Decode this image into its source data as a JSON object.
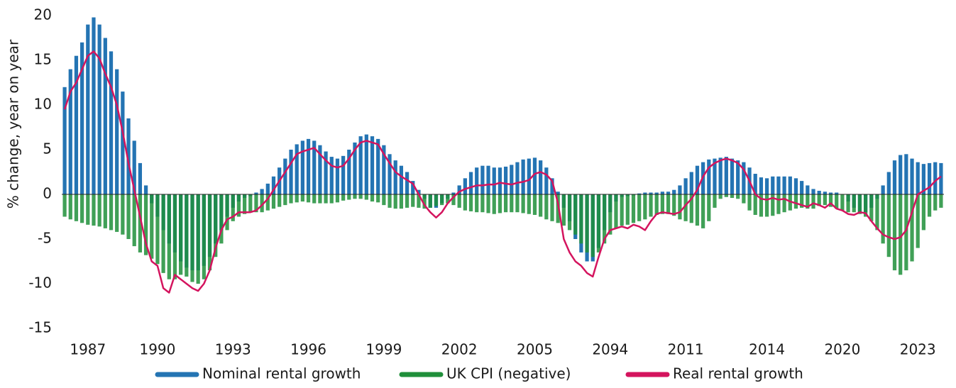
{
  "chart_data": {
    "type": "bar_line",
    "y_label": "% change, year on year",
    "categories": [
      null,
      null,
      null,
      null,
      "1987",
      null,
      null,
      null,
      null,
      null,
      null,
      null,
      null,
      null,
      null,
      null,
      "1990",
      null,
      null,
      null,
      null,
      null,
      null,
      null,
      null,
      null,
      null,
      null,
      null,
      "1993",
      null,
      null,
      null,
      null,
      null,
      null,
      null,
      null,
      null,
      null,
      null,
      null,
      "1996",
      null,
      null,
      null,
      null,
      null,
      null,
      null,
      null,
      null,
      null,
      null,
      null,
      "1999",
      null,
      null,
      null,
      null,
      null,
      null,
      null,
      null,
      null,
      null,
      null,
      null,
      "2002",
      null,
      null,
      null,
      null,
      null,
      null,
      null,
      null,
      null,
      null,
      null,
      null,
      "2005",
      null,
      null,
      null,
      null,
      null,
      null,
      null,
      null,
      null,
      null,
      null,
      null,
      "2094",
      null,
      null,
      null,
      null,
      null,
      null,
      null,
      null,
      null,
      null,
      null,
      null,
      "2011",
      null,
      null,
      null,
      null,
      null,
      null,
      null,
      null,
      null,
      null,
      null,
      null,
      null,
      "2014",
      null,
      null,
      null,
      null,
      null,
      null,
      null,
      null,
      null,
      null,
      null,
      null,
      "2020",
      null,
      null,
      null,
      null,
      null,
      null,
      null,
      null,
      null,
      null,
      null,
      null,
      "2023",
      null,
      null,
      null,
      null
    ],
    "series": [
      {
        "name": "Nominal rental growth",
        "color": "#2474b3",
        "kind": "bar",
        "values": [
          12,
          14,
          15.5,
          17,
          19,
          19.8,
          19,
          17.5,
          16,
          14,
          11.5,
          8.5,
          6,
          3.5,
          1,
          -1,
          -2.5,
          -4,
          -5.5,
          -6.5,
          -7.5,
          -8.2,
          -8.5,
          -8.5,
          -8,
          -7,
          -5.5,
          -4,
          -2.5,
          -1.5,
          -0.8,
          -0.4,
          -0.2,
          0.2,
          0.6,
          1.2,
          2,
          3,
          4,
          5,
          5.6,
          6,
          6.2,
          6,
          5.5,
          4.8,
          4.2,
          4,
          4.3,
          5,
          5.8,
          6.5,
          6.7,
          6.5,
          6.2,
          5.5,
          4.5,
          3.8,
          3.2,
          2.5,
          1.5,
          0.5,
          -0.5,
          -1.5,
          -1.5,
          -1,
          -0.5,
          0.2,
          1,
          1.8,
          2.5,
          3,
          3.2,
          3.2,
          3,
          3,
          3.1,
          3.3,
          3.6,
          3.9,
          4,
          4.1,
          3.8,
          3,
          1.8,
          0.3,
          -1.5,
          -3,
          -5,
          -6.5,
          -7.5,
          -7.5,
          -6,
          -4,
          -2,
          -0.8,
          -0.3,
          -0.2,
          -0.1,
          0.1,
          0.2,
          0.2,
          0.2,
          0.3,
          0.3,
          0.5,
          1,
          1.8,
          2.5,
          3.2,
          3.6,
          3.9,
          4,
          4.1,
          4.2,
          4,
          3.8,
          3.6,
          3,
          2.3,
          1.9,
          1.8,
          2,
          2,
          2,
          2,
          1.8,
          1.5,
          1,
          0.6,
          0.4,
          0.3,
          0.2,
          0.2,
          0,
          -0.8,
          -1.5,
          -2,
          -2,
          -1.5,
          -0.5,
          1,
          2.5,
          3.8,
          4.4,
          4.5,
          4,
          3.6,
          3.4,
          3.5,
          3.6,
          3.5
        ]
      },
      {
        "name": "UK CPI (negative)",
        "color": "#1f8f3a",
        "kind": "bar",
        "values": [
          -2.5,
          -2.8,
          -3,
          -3.2,
          -3.4,
          -3.5,
          -3.6,
          -3.8,
          -4,
          -4.2,
          -4.5,
          -5,
          -5.8,
          -6.5,
          -6.8,
          -7.2,
          -7.8,
          -8.8,
          -9.5,
          -9.5,
          -9,
          -9.2,
          -9.8,
          -10,
          -9.5,
          -8.5,
          -7,
          -5.5,
          -4,
          -3,
          -2.5,
          -2.2,
          -2,
          -2,
          -2,
          -1.8,
          -1.6,
          -1.4,
          -1.2,
          -1,
          -0.9,
          -0.8,
          -0.9,
          -1,
          -1,
          -1,
          -1,
          -0.9,
          -0.7,
          -0.6,
          -0.5,
          -0.5,
          -0.6,
          -0.8,
          -0.9,
          -1.2,
          -1.5,
          -1.6,
          -1.6,
          -1.5,
          -1.4,
          -1.5,
          -1.6,
          -1.5,
          -1.3,
          -1.2,
          -1,
          -1.2,
          -1.5,
          -1.8,
          -1.9,
          -2,
          -2,
          -2.1,
          -2.2,
          -2.1,
          -2,
          -2,
          -2,
          -2.1,
          -2.2,
          -2.3,
          -2.5,
          -2.8,
          -3,
          -3.2,
          -3.5,
          -4,
          -4.5,
          -5.5,
          -6.5,
          -7,
          -6.5,
          -5.5,
          -4.5,
          -3.8,
          -3.5,
          -3.4,
          -3.2,
          -3,
          -2.8,
          -2.5,
          -2.3,
          -2.2,
          -2.2,
          -2.4,
          -2.8,
          -3,
          -3.2,
          -3.5,
          -3.8,
          -3,
          -1.5,
          -0.5,
          -0.3,
          -0.4,
          -0.5,
          -1,
          -1.8,
          -2.3,
          -2.5,
          -2.5,
          -2.4,
          -2.2,
          -2,
          -1.8,
          -1.6,
          -1.5,
          -1.6,
          -1.6,
          -1.3,
          -1.2,
          -1.4,
          -1.6,
          -1.8,
          -2,
          -2,
          -2.2,
          -2.5,
          -3,
          -4,
          -5.5,
          -7,
          -8.5,
          -9,
          -8.5,
          -7.5,
          -6,
          -4,
          -2.5,
          -1.8,
          -1.5
        ]
      },
      {
        "name": "Real rental growth",
        "color": "#d4145e",
        "kind": "line",
        "values": [
          9.5,
          11.5,
          12.5,
          14,
          15.5,
          16,
          15.2,
          13.5,
          12,
          10,
          7,
          3.5,
          0.5,
          -2.5,
          -5.5,
          -7.5,
          -8,
          -10.5,
          -11,
          -9,
          -9.5,
          -10,
          -10.5,
          -10.8,
          -10,
          -8.5,
          -6,
          -4,
          -2.8,
          -2.5,
          -2,
          -2,
          -2,
          -1.8,
          -1.2,
          -0.5,
          0.5,
          1.5,
          2.5,
          3.5,
          4.5,
          4.8,
          5,
          5.2,
          4.5,
          3.8,
          3.2,
          3,
          3.2,
          4,
          5,
          5.8,
          6,
          5.8,
          5.6,
          4.5,
          3.5,
          2.5,
          2,
          1.6,
          1.2,
          0,
          -1.2,
          -2,
          -2.6,
          -2,
          -1,
          -0.3,
          0.3,
          0.6,
          0.8,
          1,
          1,
          1.1,
          1.1,
          1.3,
          1.2,
          1.1,
          1.3,
          1.4,
          1.6,
          2.3,
          2.5,
          2.2,
          1.5,
          -1,
          -5,
          -6.5,
          -7.5,
          -8,
          -8.8,
          -9.2,
          -7,
          -5,
          -4,
          -3.8,
          -3.6,
          -3.8,
          -3.4,
          -3.6,
          -4,
          -3,
          -2.2,
          -2,
          -2.1,
          -2.2,
          -2,
          -1.2,
          -0.5,
          0.5,
          2,
          3,
          3.5,
          3.8,
          4,
          3.8,
          3.5,
          2.8,
          1.5,
          0,
          -0.5,
          -0.6,
          -0.4,
          -0.6,
          -0.5,
          -0.8,
          -1,
          -1.2,
          -1.4,
          -1,
          -1.2,
          -1.5,
          -1,
          -1.6,
          -1.8,
          -2.2,
          -2.3,
          -2,
          -2.1,
          -3,
          -3.8,
          -4.5,
          -4.8,
          -5,
          -4.8,
          -4,
          -2,
          0,
          0.4,
          0.8,
          1.5,
          2
        ]
      }
    ],
    "ylim": [
      -15,
      20
    ],
    "yticks": [
      -15,
      -10,
      -5,
      0,
      5,
      10,
      15,
      20
    ],
    "grid": false,
    "legend": "bottom"
  }
}
